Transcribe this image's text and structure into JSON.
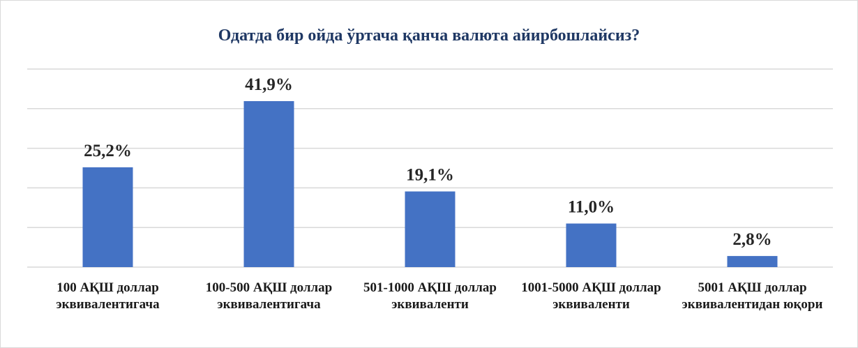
{
  "chart_data": {
    "type": "bar",
    "title": "Одатда бир ойда ўртача қанча валюта айирбошлайсиз?",
    "categories": [
      "100 АҚШ доллар эквивалентигача",
      "100-500 АҚШ доллар эквивалентигача",
      "501-1000 АҚШ доллар эквиваленти",
      "1001-5000 АҚШ доллар эквиваленти",
      "5001 АҚШ доллар эквивалентидан юқори"
    ],
    "values": [
      25.2,
      41.9,
      19.1,
      11.0,
      2.8
    ],
    "value_labels": [
      "25,2%",
      "41,9%",
      "19,1%",
      "11,0%",
      "2,8%"
    ],
    "color": "#4472c4",
    "ylim": [
      0,
      50
    ],
    "yticks": [
      0,
      10,
      20,
      30,
      40,
      50
    ],
    "grid": true
  }
}
